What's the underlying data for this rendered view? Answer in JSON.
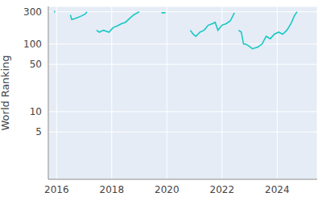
{
  "chart_data": {
    "type": "line",
    "y_label": "World Ranking",
    "x": [
      2015.9,
      2015.95,
      2016.2,
      2016.5,
      2016.55,
      2016.7,
      2016.9,
      2017.05,
      2017.1,
      2017.3,
      2017.45,
      2017.55,
      2017.7,
      2017.9,
      2018.05,
      2018.2,
      2018.35,
      2018.5,
      2018.65,
      2018.8,
      2019.0,
      2019.4,
      2019.8,
      2019.95,
      2020.4,
      2020.85,
      2020.95,
      2021.05,
      2021.2,
      2021.35,
      2021.5,
      2021.65,
      2021.75,
      2021.85,
      2022.0,
      2022.15,
      2022.3,
      2022.45,
      2022.52,
      2022.6,
      2022.7,
      2022.78,
      2022.85,
      2022.95,
      2023.1,
      2023.3,
      2023.45,
      2023.6,
      2023.75,
      2023.9,
      2024.05,
      2024.2,
      2024.35,
      2024.5,
      2024.62,
      2024.72
    ],
    "series": [
      {
        "name": "World Ranking",
        "color": "#17c8c4",
        "values": [
          300,
          300,
          null,
          270,
          230,
          240,
          260,
          280,
          300,
          null,
          160,
          150,
          160,
          150,
          175,
          185,
          200,
          210,
          240,
          270,
          300,
          null,
          290,
          290,
          null,
          160,
          140,
          130,
          150,
          160,
          190,
          200,
          210,
          160,
          190,
          200,
          220,
          290,
          null,
          160,
          150,
          100,
          100,
          95,
          85,
          90,
          100,
          130,
          120,
          140,
          150,
          140,
          160,
          200,
          260,
          300
        ]
      }
    ],
    "xlim": [
      2015.7,
      2025.45
    ],
    "xticks": [
      2016,
      2018,
      2020,
      2022,
      2024
    ],
    "ylim": [
      1,
      360
    ],
    "yticks": [
      5,
      10,
      50,
      100,
      300
    ],
    "log": "y",
    "grid": true
  }
}
